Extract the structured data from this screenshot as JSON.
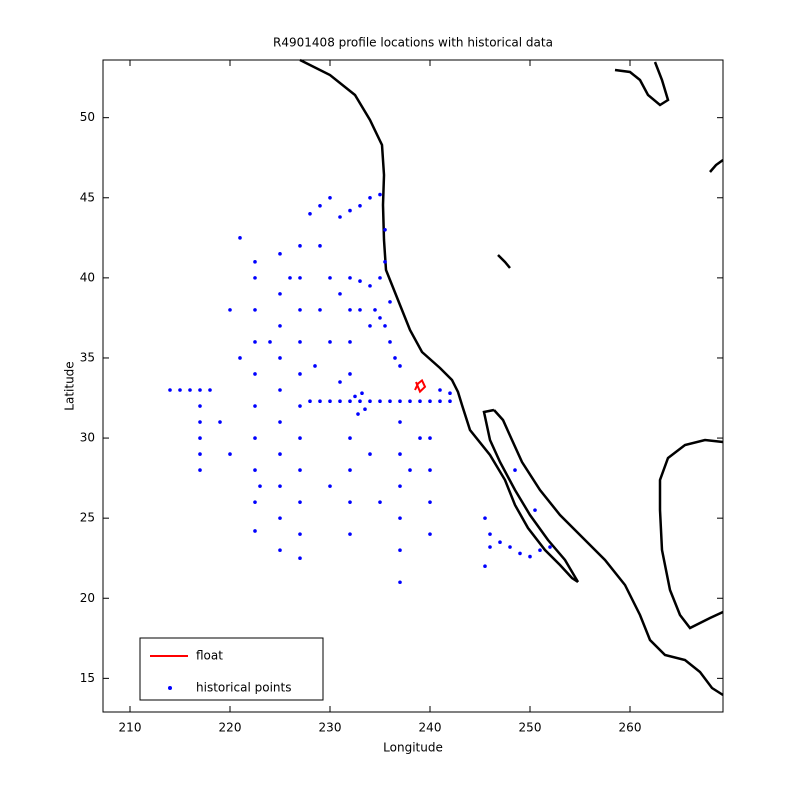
{
  "chart_data": {
    "type": "scatter",
    "title": "R4901408 profile locations with historical data",
    "x_label": "Longitude",
    "y_label": "Latitude",
    "xlim": [
      207.3,
      269.3
    ],
    "ylim": [
      12.9,
      53.6
    ],
    "xticks": [
      210,
      220,
      230,
      240,
      250,
      260
    ],
    "yticks": [
      15,
      20,
      25,
      30,
      35,
      40,
      45,
      50
    ],
    "legend": "lower left",
    "series": [
      {
        "name": "float",
        "color": "#ff0000",
        "mode": "line",
        "x": [
          238.5,
          238.8,
          239.2,
          239.5,
          239.0,
          238.6
        ],
        "values": [
          33.0,
          33.4,
          33.6,
          33.2,
          32.9,
          33.5
        ]
      },
      {
        "name": "historical points",
        "color": "#0000ff",
        "mode": "markers",
        "x": [
          228,
          229,
          230,
          231,
          232,
          233,
          234,
          235,
          236,
          237,
          238,
          239,
          240,
          241,
          242,
          232.5,
          233.5,
          232.8,
          233.2,
          217,
          217,
          217,
          217,
          217,
          217,
          222.5,
          222.5,
          222.5,
          222.5,
          222.5,
          222.5,
          222.5,
          222.5,
          222.5,
          222.5,
          225,
          225,
          225,
          225,
          225,
          225,
          225,
          225,
          225,
          225,
          227,
          227,
          227,
          227,
          227,
          227,
          227,
          227,
          227,
          227,
          227,
          232,
          232,
          232,
          232,
          232,
          232,
          232,
          237,
          237,
          237,
          237,
          237,
          237,
          240,
          240,
          240,
          240,
          214,
          215,
          216,
          235,
          234,
          233,
          232,
          231,
          230,
          229,
          228,
          235.5,
          235.5,
          235,
          234,
          233,
          232,
          234.5,
          235.5,
          236,
          236.5,
          237,
          236,
          235,
          234,
          233,
          231,
          230,
          229,
          230,
          228.5,
          231,
          245.5,
          246,
          247,
          248,
          249,
          250,
          251,
          252,
          245.5,
          246,
          248.5,
          250.5,
          220,
          219,
          221,
          220,
          221,
          218,
          223,
          224,
          226,
          229,
          230,
          234,
          235,
          238,
          239,
          241,
          242
        ],
        "values": [
          32.3,
          32.3,
          32.3,
          32.3,
          32.3,
          32.3,
          32.3,
          32.3,
          32.3,
          32.3,
          32.3,
          32.3,
          32.3,
          32.3,
          32.3,
          32.6,
          31.8,
          31.5,
          32.8,
          28,
          29,
          30,
          31,
          32,
          33,
          24.2,
          26,
          28,
          30,
          32,
          34,
          36,
          38,
          40,
          41,
          23,
          25,
          27,
          29,
          31,
          33,
          35,
          37,
          39,
          41.5,
          22.5,
          24,
          26,
          28,
          30,
          32,
          34,
          36,
          38,
          40,
          42,
          24,
          26,
          28,
          30,
          34,
          36,
          38,
          21,
          23,
          25,
          27,
          29,
          31,
          24,
          26,
          28,
          30,
          33,
          33,
          33,
          45.2,
          45,
          44.5,
          44.2,
          43.8,
          45,
          44.5,
          44,
          43,
          41,
          40,
          39.5,
          39.8,
          40,
          38,
          37,
          36,
          35,
          34.5,
          38.5,
          37.5,
          37,
          38,
          39,
          40,
          38,
          36,
          34.5,
          33.5,
          25,
          24,
          23.5,
          23.2,
          22.8,
          22.6,
          23,
          23.2,
          22,
          23.2,
          28,
          25.5,
          29,
          31,
          35,
          38,
          42.5,
          33,
          27,
          36,
          40,
          42,
          27,
          29,
          26,
          28,
          30,
          33,
          32.8
        ]
      }
    ]
  }
}
